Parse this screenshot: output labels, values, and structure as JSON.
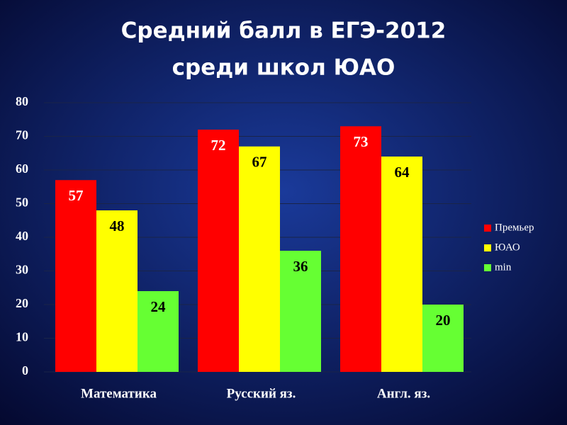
{
  "chart_data": {
    "type": "bar",
    "title": [
      "Средний балл в ЕГЭ-2012",
      "среди школ ЮАО"
    ],
    "categories": [
      "Математика",
      "Русский яз.",
      "Англ. яз."
    ],
    "series": [
      {
        "name": "Премьер",
        "color": "#ff0000",
        "label_color": "#ffffff",
        "values": [
          57,
          72,
          73
        ]
      },
      {
        "name": "ЮАО",
        "color": "#ffff00",
        "label_color": "#000000",
        "values": [
          48,
          67,
          64
        ]
      },
      {
        "name": "min",
        "color": "#66ff33",
        "label_color": "#000000",
        "values": [
          24,
          36,
          20
        ]
      }
    ],
    "ylim": [
      0,
      80
    ],
    "yticks": [
      0,
      10,
      20,
      30,
      40,
      50,
      60,
      70,
      80
    ],
    "grid": true,
    "legend": "right"
  }
}
